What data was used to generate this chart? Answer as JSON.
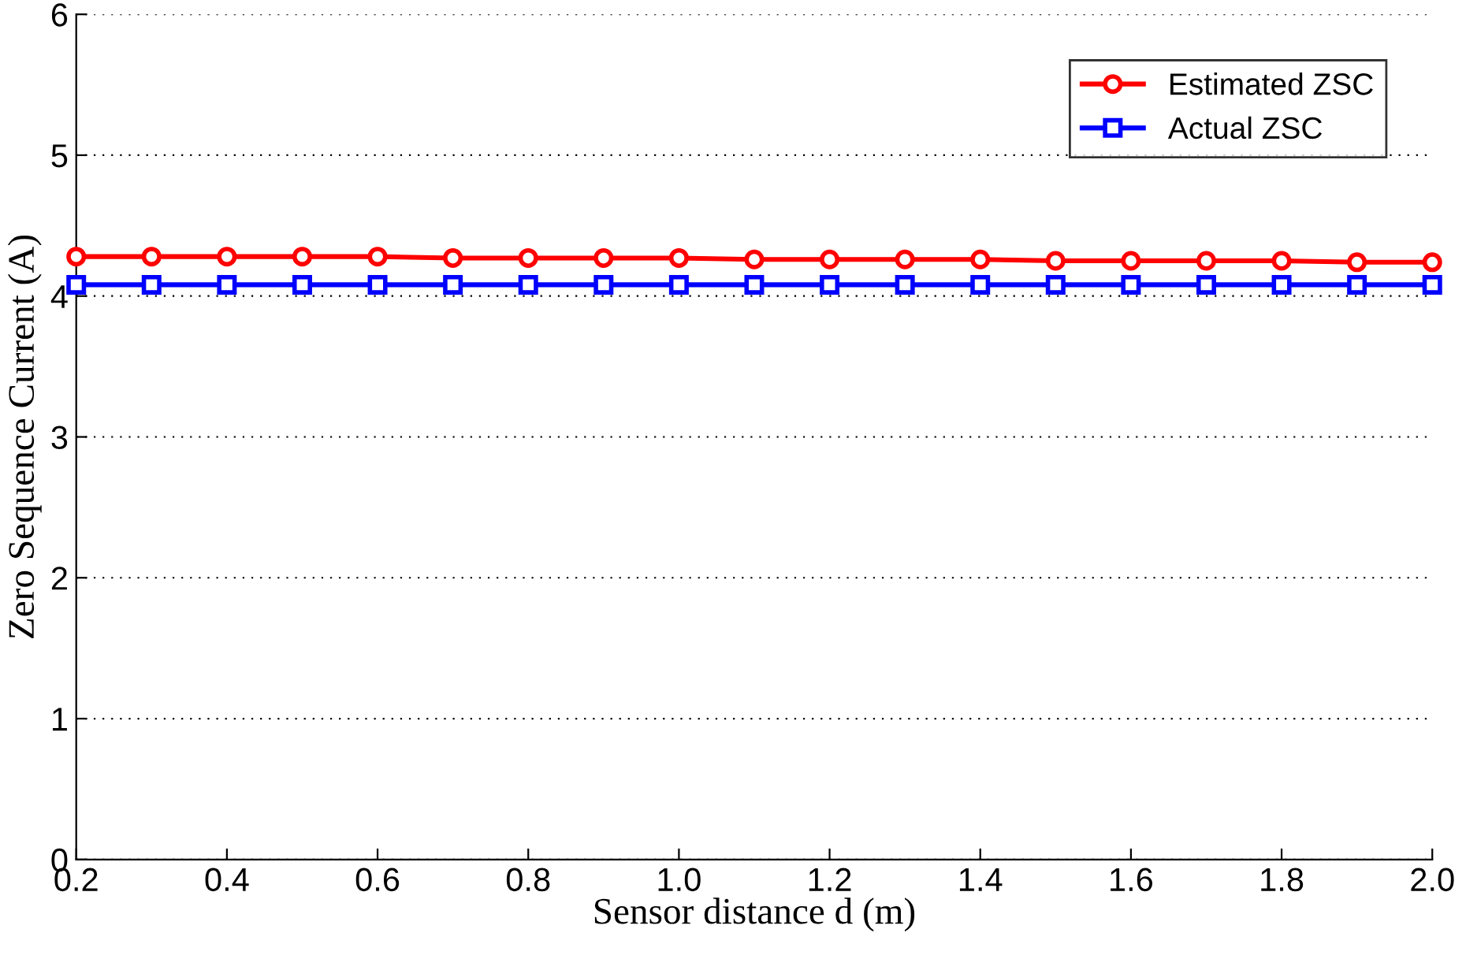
{
  "chart_data": {
    "type": "line",
    "xlabel": "Sensor distance d (m)",
    "ylabel": "Zero Sequence Current (A)",
    "x": [
      0.2,
      0.3,
      0.4,
      0.5,
      0.6,
      0.7,
      0.8,
      0.9,
      1.0,
      1.1,
      1.2,
      1.3,
      1.4,
      1.5,
      1.6,
      1.7,
      1.8,
      1.9,
      2.0
    ],
    "series": [
      {
        "name": "Estimated ZSC",
        "color": "#ff0000",
        "marker": "circle",
        "values": [
          4.28,
          4.28,
          4.28,
          4.28,
          4.28,
          4.27,
          4.27,
          4.27,
          4.27,
          4.26,
          4.26,
          4.26,
          4.26,
          4.25,
          4.25,
          4.25,
          4.25,
          4.24,
          4.24
        ]
      },
      {
        "name": "Actual ZSC",
        "color": "#0000ff",
        "marker": "square",
        "values": [
          4.08,
          4.08,
          4.08,
          4.08,
          4.08,
          4.08,
          4.08,
          4.08,
          4.08,
          4.08,
          4.08,
          4.08,
          4.08,
          4.08,
          4.08,
          4.08,
          4.08,
          4.08,
          4.08
        ]
      }
    ],
    "xlim": [
      0.2,
      2.0
    ],
    "xticks": [
      {
        "value": 0.2,
        "label": "0.2"
      },
      {
        "value": 0.4,
        "label": "0.4"
      },
      {
        "value": 0.6,
        "label": "0.6"
      },
      {
        "value": 0.8,
        "label": "0.8"
      },
      {
        "value": 1.0,
        "label": "1.0"
      },
      {
        "value": 1.2,
        "label": "1.2"
      },
      {
        "value": 1.4,
        "label": "1.4"
      },
      {
        "value": 1.6,
        "label": "1.6"
      },
      {
        "value": 1.8,
        "label": "1.8"
      },
      {
        "value": 2.0,
        "label": "2.0"
      }
    ],
    "ylim": [
      0,
      6
    ],
    "yticks": [
      0,
      1,
      2,
      3,
      4,
      5,
      6
    ],
    "grid": "y",
    "legend": "top right",
    "line_style": "solid"
  }
}
